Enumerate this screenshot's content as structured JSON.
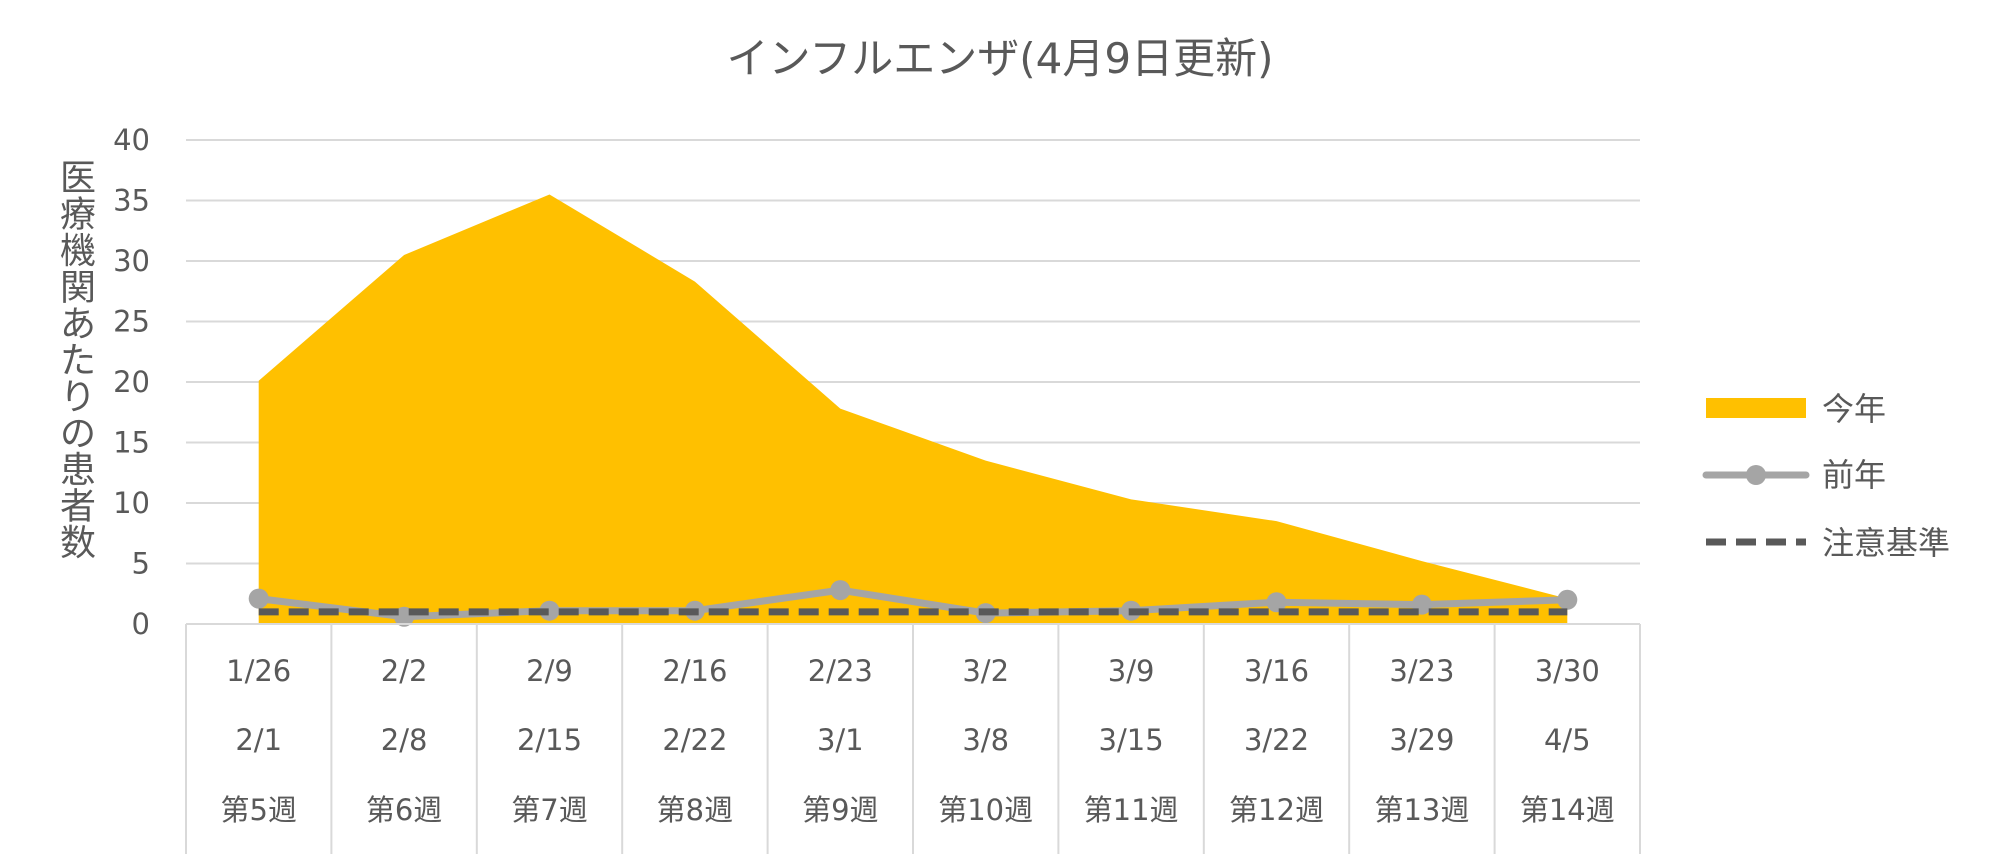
{
  "chart_data": {
    "type": "area",
    "title": "インフルエンザ(4月9日更新)",
    "ylabel": "医療機関あたりの患者数",
    "ylim": [
      0,
      40
    ],
    "yticks": [
      0,
      5,
      10,
      15,
      20,
      25,
      30,
      35,
      40
    ],
    "categories": [
      {
        "start": "1/26",
        "end": "2/1",
        "week": "第5週"
      },
      {
        "start": "2/2",
        "end": "2/8",
        "week": "第6週"
      },
      {
        "start": "2/9",
        "end": "2/15",
        "week": "第7週"
      },
      {
        "start": "2/16",
        "end": "2/22",
        "week": "第8週"
      },
      {
        "start": "2/23",
        "end": "3/1",
        "week": "第9週"
      },
      {
        "start": "3/2",
        "end": "3/8",
        "week": "第10週"
      },
      {
        "start": "3/9",
        "end": "3/15",
        "week": "第11週"
      },
      {
        "start": "3/16",
        "end": "3/22",
        "week": "第12週"
      },
      {
        "start": "3/23",
        "end": "3/29",
        "week": "第13週"
      },
      {
        "start": "3/30",
        "end": "4/5",
        "week": "第14週"
      }
    ],
    "series": [
      {
        "name": "今年",
        "kind": "area",
        "color": "#FFC000",
        "values": [
          20.1,
          30.5,
          35.5,
          28.3,
          17.8,
          13.5,
          10.3,
          8.5,
          5.2,
          2.1
        ]
      },
      {
        "name": "前年",
        "kind": "line",
        "color": "#A5A5A5",
        "values": [
          2.1,
          0.6,
          1.1,
          1.1,
          2.8,
          0.9,
          1.1,
          1.8,
          1.6,
          2.0
        ]
      },
      {
        "name": "注意基準",
        "kind": "dashed",
        "color": "#595959",
        "values": [
          1,
          1,
          1,
          1,
          1,
          1,
          1,
          1,
          1,
          1
        ]
      }
    ],
    "grid": true,
    "legend_position": "right"
  }
}
